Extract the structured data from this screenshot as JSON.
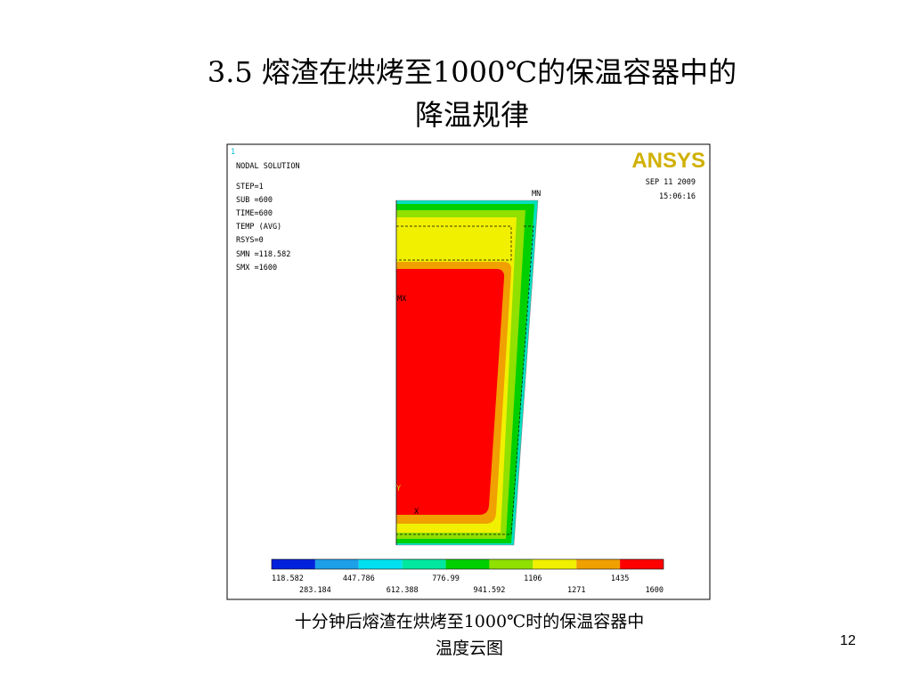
{
  "header": {
    "title_lines": [
      "3.5 熔渣在烘烤至1000℃的保温容器中的",
      "降温规律"
    ]
  },
  "figure": {
    "plot_number": "1",
    "info_lines": [
      "NODAL SOLUTION",
      "STEP=1",
      "SUB =600",
      "TIME=600",
      "TEMP     (AVG)",
      "RSYS=0",
      "SMN =118.582",
      "SMX =1600"
    ],
    "logo": "ANSYS",
    "date": "SEP 11 2009",
    "time": "15:06:16",
    "min_marker": "MN",
    "max_marker": "MX",
    "axis_y": "Y",
    "axis_x": "X",
    "legend_labels": [
      "118.582",
      "283.184",
      "447.786",
      "612.388",
      "776.99",
      "941.592",
      "1106",
      "1271",
      "1435",
      "1600"
    ]
  },
  "caption_lines": [
    "十分钟后熔渣在烘烤至1000℃时的保温容器中",
    "温度云图"
  ],
  "page_number": "12"
}
